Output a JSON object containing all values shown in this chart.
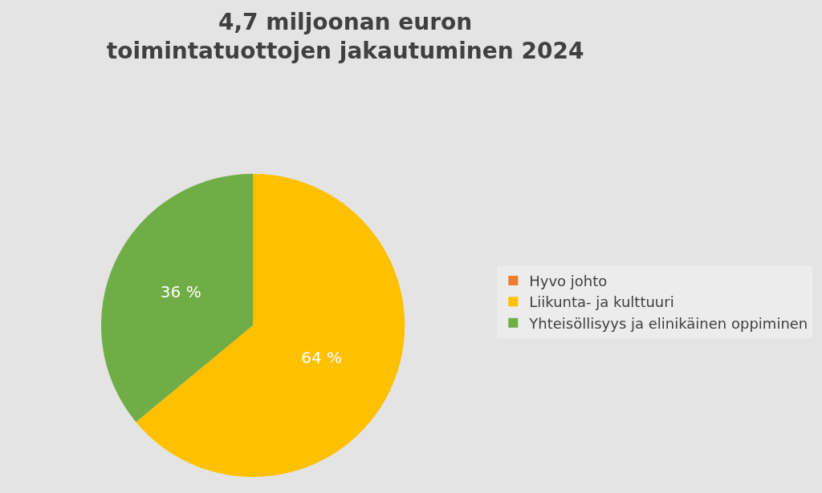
{
  "chart_data": {
    "type": "pie",
    "title": "4,7 miljoonan euron toimintatuottojen jakautuminen 2024",
    "categories": [
      "Hyvo johto",
      "Liikunta- ja kulttuuri",
      "Yhteisöllisyys ja elinikäinen oppiminen"
    ],
    "values": [
      0,
      64,
      36
    ],
    "value_labels": [
      null,
      "64 %",
      "36 %"
    ],
    "colors": [
      "#ed7d31",
      "#ffc000",
      "#70ad47"
    ],
    "legend": "right"
  }
}
